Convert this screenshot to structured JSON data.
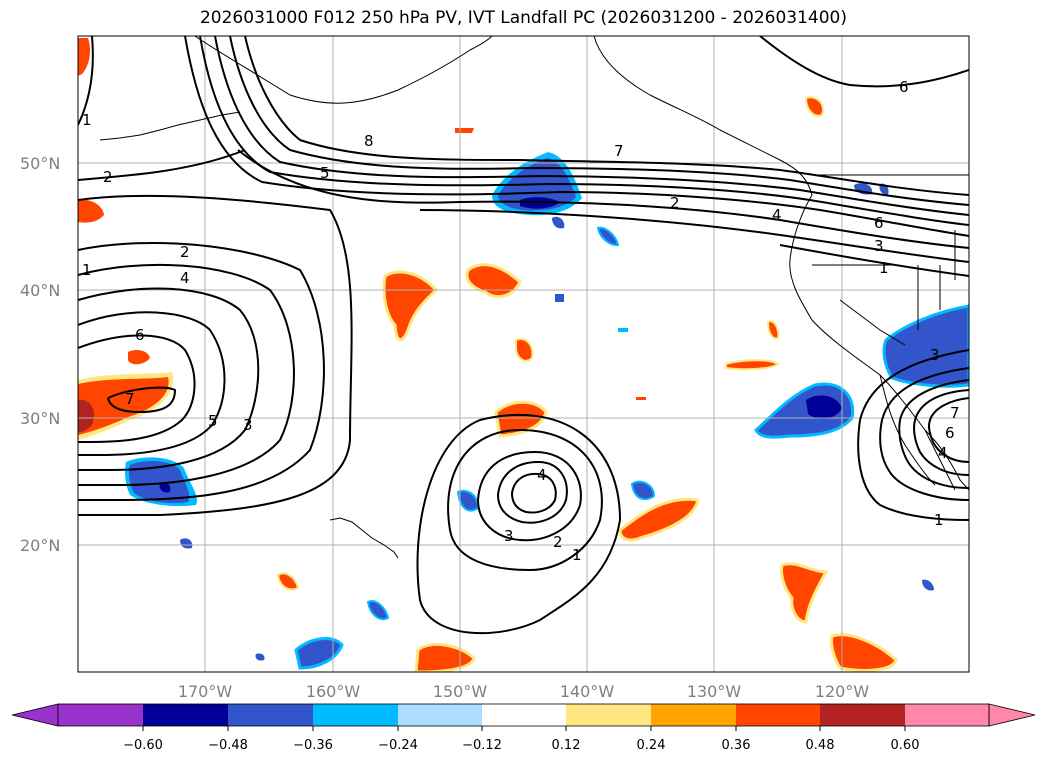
{
  "title": "2026031000 F012 250 hPa PV, IVT Landfall PC (2026031200 - 2026031400)",
  "map": {
    "lon_range": [
      -180,
      -110
    ],
    "lat_range": [
      10,
      60
    ],
    "lat_ticks": [
      "50°N",
      "40°N",
      "30°N",
      "20°N"
    ],
    "lon_ticks": [
      "170°W",
      "160°W",
      "150°W",
      "140°W",
      "130°W",
      "120°W"
    ],
    "grid": true,
    "contour_labels": [
      "2",
      "2",
      "4",
      "6",
      "7",
      "5",
      "3",
      "1",
      "8",
      "5",
      "7",
      "2",
      "4",
      "6",
      "3",
      "1",
      "4",
      "3",
      "2",
      "1",
      "6",
      "3",
      "1",
      "7",
      "6",
      "4",
      "1"
    ]
  },
  "colorbar": {
    "labels": [
      "−0.60",
      "−0.48",
      "−0.36",
      "−0.24",
      "−0.12",
      "0.12",
      "0.24",
      "0.36",
      "0.48",
      "0.60"
    ],
    "colors": [
      "#9933cc",
      "#000099",
      "#3355cc",
      "#00bbff",
      "#aaddff",
      "#ffffff",
      "#ffe680",
      "#ffa500",
      "#ff4500",
      "#b22222",
      "#ff88aa"
    ],
    "extend": "both"
  },
  "shading_colors": {
    "pos_light": "#ffe680",
    "pos_mid": "#ffa500",
    "pos_strong": "#ff4500",
    "pos_max": "#b22222",
    "neg_light": "#aaddff",
    "neg_mid": "#00bbff",
    "neg_strong": "#3355cc",
    "neg_max": "#000099"
  }
}
